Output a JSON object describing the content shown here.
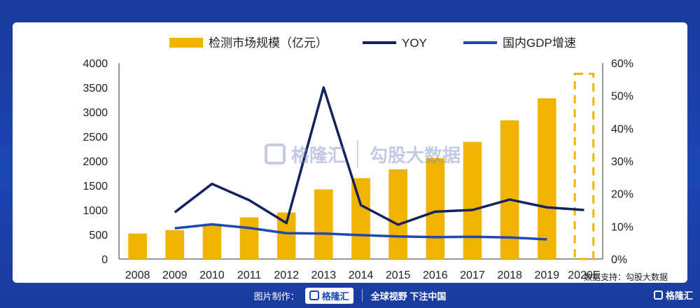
{
  "chart_data": {
    "type": "bar",
    "categories": [
      "2008",
      "2009",
      "2010",
      "2011",
      "2012",
      "2013",
      "2014",
      "2015",
      "2016",
      "2017",
      "2018",
      "2019",
      "2020E"
    ],
    "series": [
      {
        "name": "检测市场规模（亿元）",
        "kind": "bar",
        "axis": "left",
        "values": [
          520,
          590,
          720,
          850,
          950,
          1420,
          1650,
          1830,
          2060,
          2390,
          2830,
          3280,
          3780
        ],
        "color": "#f0b400"
      },
      {
        "name": "YOY",
        "kind": "line",
        "axis": "right",
        "values": [
          null,
          14.3,
          23.0,
          18.0,
          11.0,
          52.5,
          16.5,
          10.5,
          14.5,
          15.0,
          18.2,
          15.8,
          15.0
        ],
        "color": "#13235e"
      },
      {
        "name": "国内GDP增速",
        "kind": "line",
        "axis": "right",
        "values": [
          null,
          9.4,
          10.6,
          9.5,
          7.9,
          7.8,
          7.3,
          6.9,
          6.7,
          6.8,
          6.6,
          6.0,
          null
        ],
        "color": "#1f47b5"
      }
    ],
    "left_axis": {
      "ylim": [
        0,
        4000
      ],
      "ticks": [
        "0",
        "500",
        "1000",
        "1500",
        "2000",
        "2500",
        "3000",
        "3500",
        "4000"
      ]
    },
    "right_axis": {
      "ylim": [
        0,
        60
      ],
      "ticks": [
        "0%",
        "10%",
        "20%",
        "30%",
        "40%",
        "50%",
        "60%"
      ]
    },
    "estimate_category": "2020E",
    "legend_position": "top",
    "grid": false
  },
  "source_note": "数据支持：勾股大数据",
  "watermark": {
    "brand": "格隆汇",
    "partner": "勾股大数据"
  },
  "footer": {
    "made_by": "图片制作：",
    "brand": "格隆汇",
    "slogan": "全球视野 下注中国"
  },
  "corner_brand": "格隆汇"
}
